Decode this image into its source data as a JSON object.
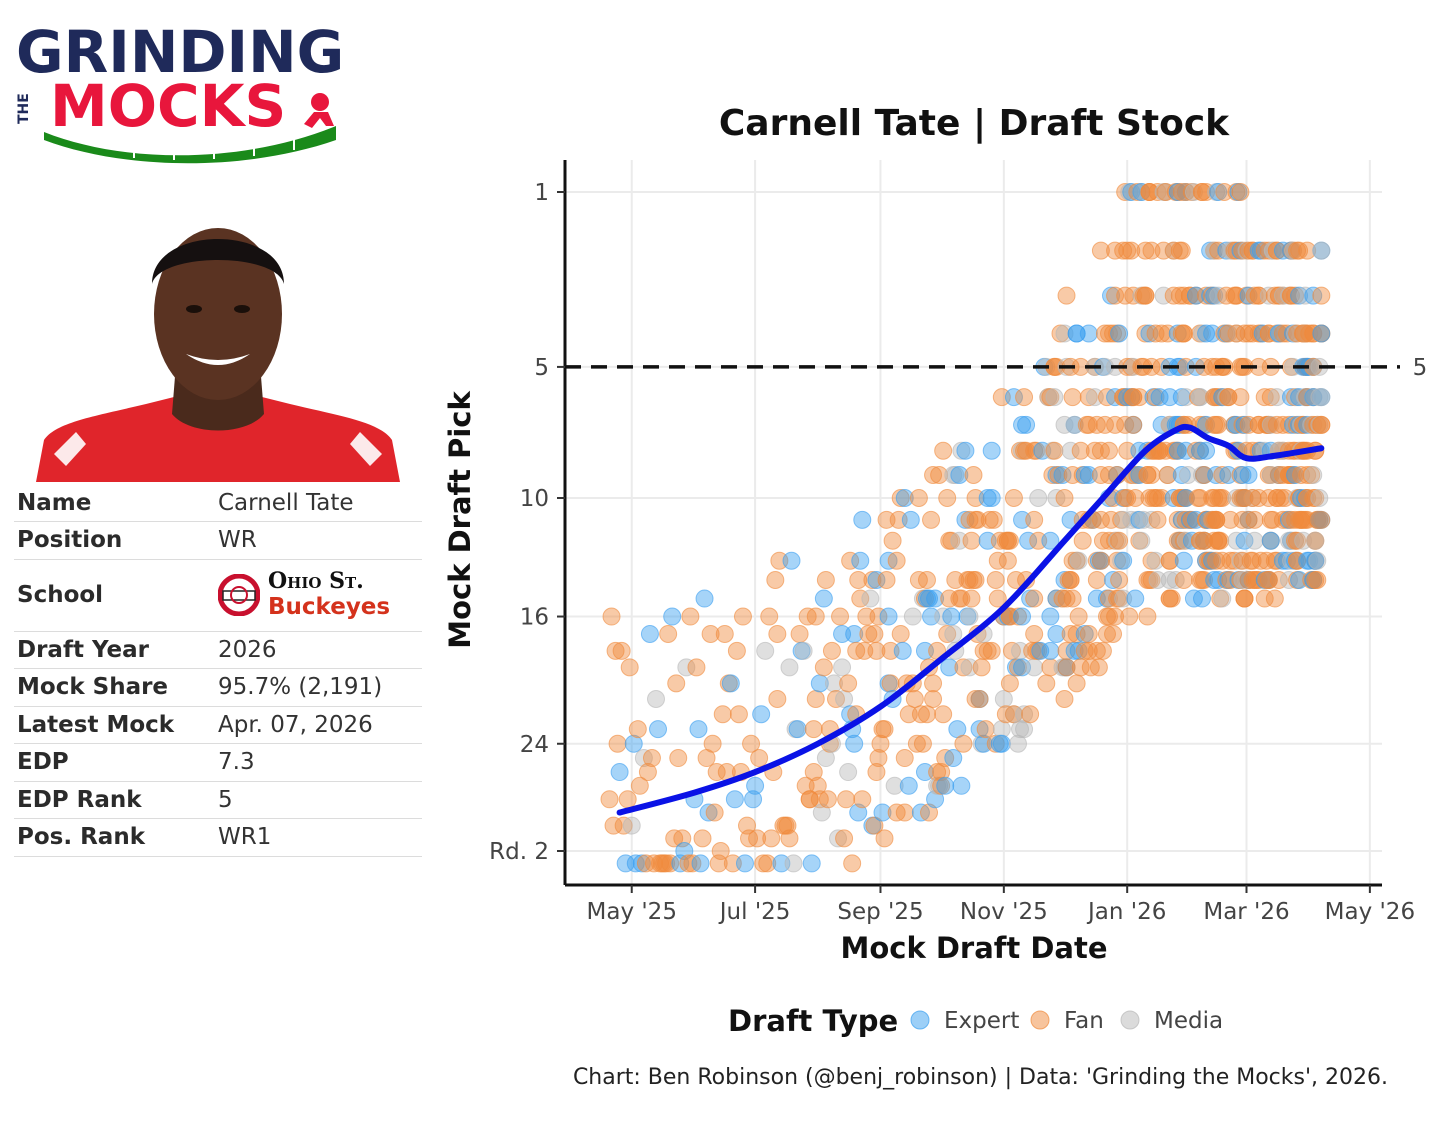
{
  "logo": {
    "line1": "GRINDING",
    "line2_small": "THE",
    "line2_big": "MOCKS",
    "colors": {
      "navy": "#1f2a5a",
      "red": "#e8163c",
      "green": "#1a8a1a"
    }
  },
  "player": {
    "photo_icon": "player-headshot",
    "rows": [
      {
        "key": "Name",
        "value": "Carnell Tate"
      },
      {
        "key": "Position",
        "value": "WR"
      },
      {
        "key": "School",
        "school_top": "Ohio St.",
        "school_bottom": "Buckeyes",
        "logo_icon": "ohio-state-logo"
      },
      {
        "key": "Draft Year",
        "value": "2026"
      },
      {
        "key": "Mock Share",
        "value": "95.7% (2,191)"
      },
      {
        "key": "Latest Mock",
        "value": "Apr. 07, 2026"
      },
      {
        "key": "EDP",
        "value": "7.3"
      },
      {
        "key": "EDP Rank",
        "value": "5"
      },
      {
        "key": "Pos. Rank",
        "value": "WR1"
      }
    ]
  },
  "chart_data": {
    "type": "scatter",
    "title": "Carnell Tate | Draft Stock",
    "xlabel": "Mock Draft Date",
    "ylabel": "Mock Draft Pick",
    "x_ticks": [
      "May '25",
      "Jul '25",
      "Sep '25",
      "Nov '25",
      "Jan '26",
      "Mar '26",
      "May '26"
    ],
    "y_ticks": [
      "1",
      "5",
      "10",
      "16",
      "24",
      "Rd. 2"
    ],
    "y_tick_values": [
      1,
      5,
      10,
      16,
      24,
      32
    ],
    "ylim": [
      1,
      33
    ],
    "y_scale": "sqrt",
    "reference_line": {
      "value": 5,
      "label": "5",
      "style": "dashed"
    },
    "legend": {
      "title": "Draft Type",
      "position": "bottom"
    },
    "series": [
      {
        "name": "Expert",
        "color": "#3a9ff0"
      },
      {
        "name": "Fan",
        "color": "#f08a3c"
      },
      {
        "name": "Media",
        "color": "#b8b8b8"
      }
    ],
    "trend": {
      "color": "#0a12e6",
      "dates": [
        "2025-04-25",
        "2025-06-01",
        "2025-07-01",
        "2025-08-01",
        "2025-09-01",
        "2025-10-01",
        "2025-11-01",
        "2025-12-01",
        "2025-12-20",
        "2026-01-10",
        "2026-01-25",
        "2026-02-01",
        "2026-02-10",
        "2026-02-20",
        "2026-03-01",
        "2026-03-15",
        "2026-04-07"
      ],
      "picks": [
        29,
        27.5,
        26,
        24,
        21.5,
        18.5,
        15.5,
        12,
        10,
        8,
        7.2,
        7.1,
        7.5,
        7.8,
        8.3,
        8.2,
        7.9
      ]
    },
    "points_note": "",
    "caption": "Chart: Ben Robinson (@benj_robinson) | Data: 'Grinding the Mocks', 2026."
  }
}
